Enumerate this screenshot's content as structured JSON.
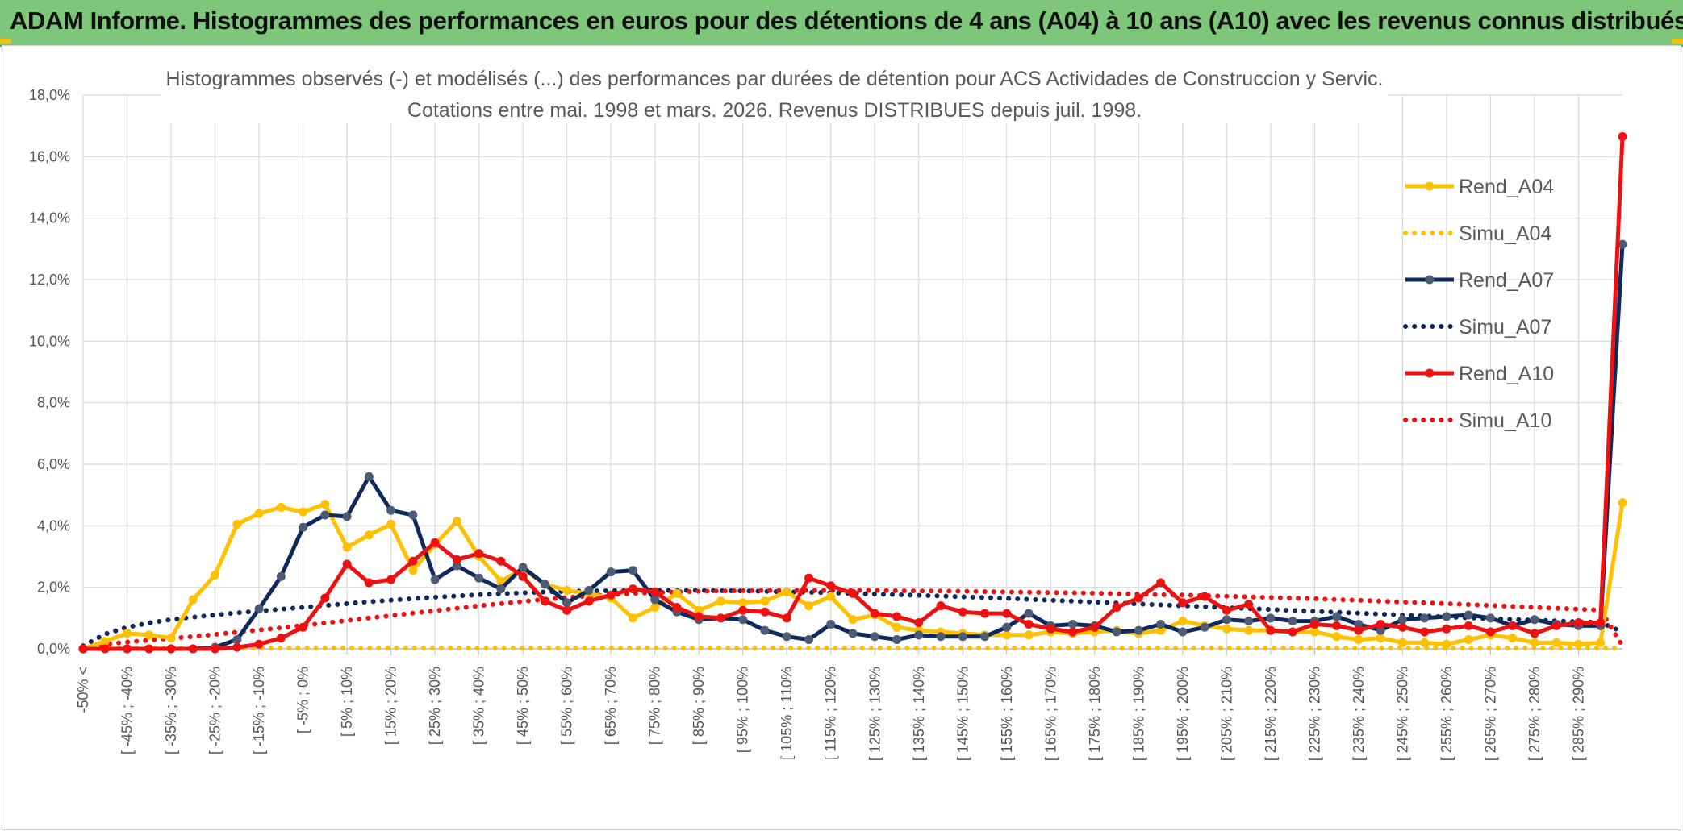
{
  "banner": {
    "title": "ADAM Informe. Histogrammes des performances en euros pour des détentions de 4 ans (A04) à 10 ans (A10) avec les revenus connus distribués"
  },
  "colors": {
    "banner_bg": "#7dc67a",
    "A04": "#ffc000",
    "A07": "#0e2a5c",
    "A07_marker": "#4d5b74",
    "A10": "#ee1111",
    "grid": "#d9d9d9"
  },
  "chart_data": {
    "type": "line",
    "title_lines": [
      "Histogrammes observés (-) et modélisés (...) des performances par durées de détention pour ACS Actividades de Construccion y Servic.",
      "Cotations entre mai. 1998 et mars. 2026. Revenus DISTRIBUES depuis juil. 1998."
    ],
    "ylim": [
      0,
      18
    ],
    "yticks": [
      "0,0%",
      "2,0%",
      "4,0%",
      "6,0%",
      "8,0%",
      "10,0%",
      "12,0%",
      "14,0%",
      "16,0%",
      "18,0%"
    ],
    "xtick_labels": [
      "-50% <",
      "[ -45% ; -40%",
      "[ -35% ; -30%",
      "[ -25% ; -20%",
      "[ -15% ; -10%",
      "[ -5% ; 0%",
      "[ 5% ; 10%",
      "[ 15% ; 20%",
      "[ 25% ; 30%",
      "[ 35% ; 40%",
      "[ 45% ; 50%",
      "[ 55% ; 60%",
      "[ 65% ; 70%",
      "[ 75% ; 80%",
      "[ 85% ; 90%",
      "[ 95% ; 100%",
      "[ 105% ; 110%",
      "[ 115% ; 120%",
      "[ 125% ; 130%",
      "[ 135% ; 140%",
      "[ 145% ; 150%",
      "[ 155% ; 160%",
      "[ 165% ; 170%",
      "[ 175% ; 180%",
      "[ 185% ; 190%",
      "[ 195% ; 200%",
      "[ 205% ; 210%",
      "[ 215% ; 220%",
      "[ 225% ; 230%",
      "[ 235% ; 240%",
      "[ 245% ; 250%",
      "[ 255% ; 260%",
      "[ 265% ; 270%",
      "[ 275% ; 280%",
      "[ 285% ; 290%"
    ],
    "legend_position": "top-right",
    "grid": true,
    "series": [
      {
        "name": "Rend_A04",
        "style": "solid",
        "color": "#ffc000",
        "values": [
          0.0,
          0.25,
          0.5,
          0.45,
          0.35,
          1.6,
          2.4,
          4.05,
          4.4,
          4.6,
          4.45,
          4.7,
          3.3,
          3.7,
          4.05,
          2.55,
          3.4,
          4.15,
          3.0,
          2.2,
          2.6,
          2.1,
          1.9,
          1.8,
          1.65,
          1.0,
          1.35,
          1.8,
          1.25,
          1.55,
          1.5,
          1.55,
          1.85,
          1.4,
          1.7,
          0.95,
          1.1,
          0.7,
          0.6,
          0.55,
          0.5,
          0.45,
          0.45,
          0.45,
          0.55,
          0.5,
          0.55,
          0.6,
          0.5,
          0.6,
          0.9,
          0.75,
          0.65,
          0.6,
          0.6,
          0.55,
          0.55,
          0.4,
          0.3,
          0.35,
          0.2,
          0.2,
          0.15,
          0.3,
          0.45,
          0.35,
          0.2,
          0.2,
          0.15,
          0.2,
          4.75
        ]
      },
      {
        "name": "Simu_A04",
        "style": "dotted",
        "color": "#ffc000",
        "values": [
          0.03,
          0.03,
          0.03,
          0.03,
          0.03,
          0.03,
          0.03,
          0.03,
          0.03,
          0.03,
          0.03,
          0.03,
          0.03,
          0.03,
          0.03,
          0.03,
          0.03,
          0.03,
          0.03,
          0.03,
          0.03,
          0.03,
          0.03,
          0.03,
          0.03,
          0.03,
          0.03,
          0.03,
          0.03,
          0.03,
          0.03,
          0.03,
          0.03,
          0.03,
          0.03,
          0.03,
          0.03,
          0.03,
          0.03,
          0.03,
          0.03,
          0.03,
          0.03,
          0.03,
          0.03,
          0.03,
          0.03,
          0.03,
          0.03,
          0.03,
          0.03,
          0.03,
          0.03,
          0.03,
          0.03,
          0.03,
          0.03,
          0.03,
          0.03,
          0.03,
          0.03,
          0.03,
          0.03,
          0.03,
          0.03,
          0.03,
          0.03,
          0.03,
          0.03,
          0.03,
          0.03
        ]
      },
      {
        "name": "Rend_A07",
        "style": "solid",
        "color": "#0e2a5c",
        "values": [
          0.0,
          0.0,
          0.0,
          0.0,
          0.0,
          0.0,
          0.05,
          0.3,
          1.3,
          2.35,
          3.95,
          4.35,
          4.3,
          5.6,
          4.5,
          4.35,
          2.25,
          2.7,
          2.3,
          1.95,
          2.65,
          2.1,
          1.5,
          1.9,
          2.5,
          2.55,
          1.6,
          1.2,
          0.95,
          1.0,
          0.95,
          0.6,
          0.4,
          0.3,
          0.8,
          0.5,
          0.4,
          0.3,
          0.45,
          0.4,
          0.4,
          0.4,
          0.7,
          1.15,
          0.75,
          0.8,
          0.75,
          0.55,
          0.6,
          0.8,
          0.55,
          0.7,
          0.95,
          0.9,
          1.0,
          0.9,
          0.9,
          1.05,
          0.8,
          0.6,
          0.95,
          1.0,
          1.05,
          1.1,
          1.0,
          0.75,
          0.95,
          0.8,
          0.75,
          0.75,
          13.15
        ]
      },
      {
        "name": "Simu_A07",
        "style": "dotted",
        "color": "#0e2a5c",
        "values": [
          0.1,
          0.48,
          0.7,
          0.84,
          0.95,
          1.03,
          1.1,
          1.17,
          1.23,
          1.29,
          1.35,
          1.41,
          1.47,
          1.53,
          1.58,
          1.63,
          1.68,
          1.72,
          1.76,
          1.79,
          1.82,
          1.85,
          1.87,
          1.88,
          1.89,
          1.9,
          1.9,
          1.9,
          1.9,
          1.89,
          1.88,
          1.87,
          1.85,
          1.84,
          1.82,
          1.8,
          1.78,
          1.76,
          1.74,
          1.72,
          1.69,
          1.67,
          1.64,
          1.61,
          1.58,
          1.55,
          1.52,
          1.49,
          1.46,
          1.43,
          1.4,
          1.37,
          1.34,
          1.31,
          1.28,
          1.25,
          1.22,
          1.19,
          1.16,
          1.13,
          1.1,
          1.07,
          1.04,
          1.01,
          0.98,
          0.96,
          0.93,
          0.91,
          0.88,
          0.86,
          0.55
        ]
      },
      {
        "name": "Rend_A10",
        "style": "solid",
        "color": "#ee1111",
        "values": [
          0.0,
          0.0,
          0.0,
          0.0,
          0.0,
          0.0,
          0.0,
          0.05,
          0.15,
          0.35,
          0.7,
          1.65,
          2.75,
          2.15,
          2.25,
          2.85,
          3.45,
          2.9,
          3.1,
          2.85,
          2.35,
          1.55,
          1.25,
          1.55,
          1.75,
          1.95,
          1.85,
          1.35,
          1.05,
          1.0,
          1.25,
          1.2,
          1.0,
          2.3,
          2.05,
          1.8,
          1.15,
          1.05,
          0.85,
          1.4,
          1.2,
          1.15,
          1.15,
          0.8,
          0.65,
          0.55,
          0.7,
          1.35,
          1.65,
          2.15,
          1.5,
          1.7,
          1.25,
          1.45,
          0.6,
          0.55,
          0.8,
          0.75,
          0.6,
          0.8,
          0.7,
          0.55,
          0.65,
          0.75,
          0.55,
          0.75,
          0.5,
          0.75,
          0.85,
          0.85,
          16.65
        ]
      },
      {
        "name": "Simu_A10",
        "style": "dotted",
        "color": "#ee1111",
        "values": [
          0.05,
          0.15,
          0.22,
          0.28,
          0.34,
          0.4,
          0.47,
          0.54,
          0.61,
          0.68,
          0.76,
          0.84,
          0.92,
          1.0,
          1.08,
          1.16,
          1.24,
          1.32,
          1.4,
          1.47,
          1.54,
          1.61,
          1.67,
          1.72,
          1.76,
          1.8,
          1.83,
          1.85,
          1.87,
          1.88,
          1.89,
          1.9,
          1.9,
          1.9,
          1.9,
          1.9,
          1.9,
          1.89,
          1.88,
          1.88,
          1.87,
          1.86,
          1.85,
          1.84,
          1.83,
          1.82,
          1.81,
          1.79,
          1.78,
          1.76,
          1.75,
          1.73,
          1.71,
          1.69,
          1.67,
          1.65,
          1.63,
          1.6,
          1.58,
          1.55,
          1.52,
          1.5,
          1.47,
          1.44,
          1.41,
          1.38,
          1.35,
          1.32,
          1.29,
          1.26,
          0.1
        ]
      }
    ]
  }
}
